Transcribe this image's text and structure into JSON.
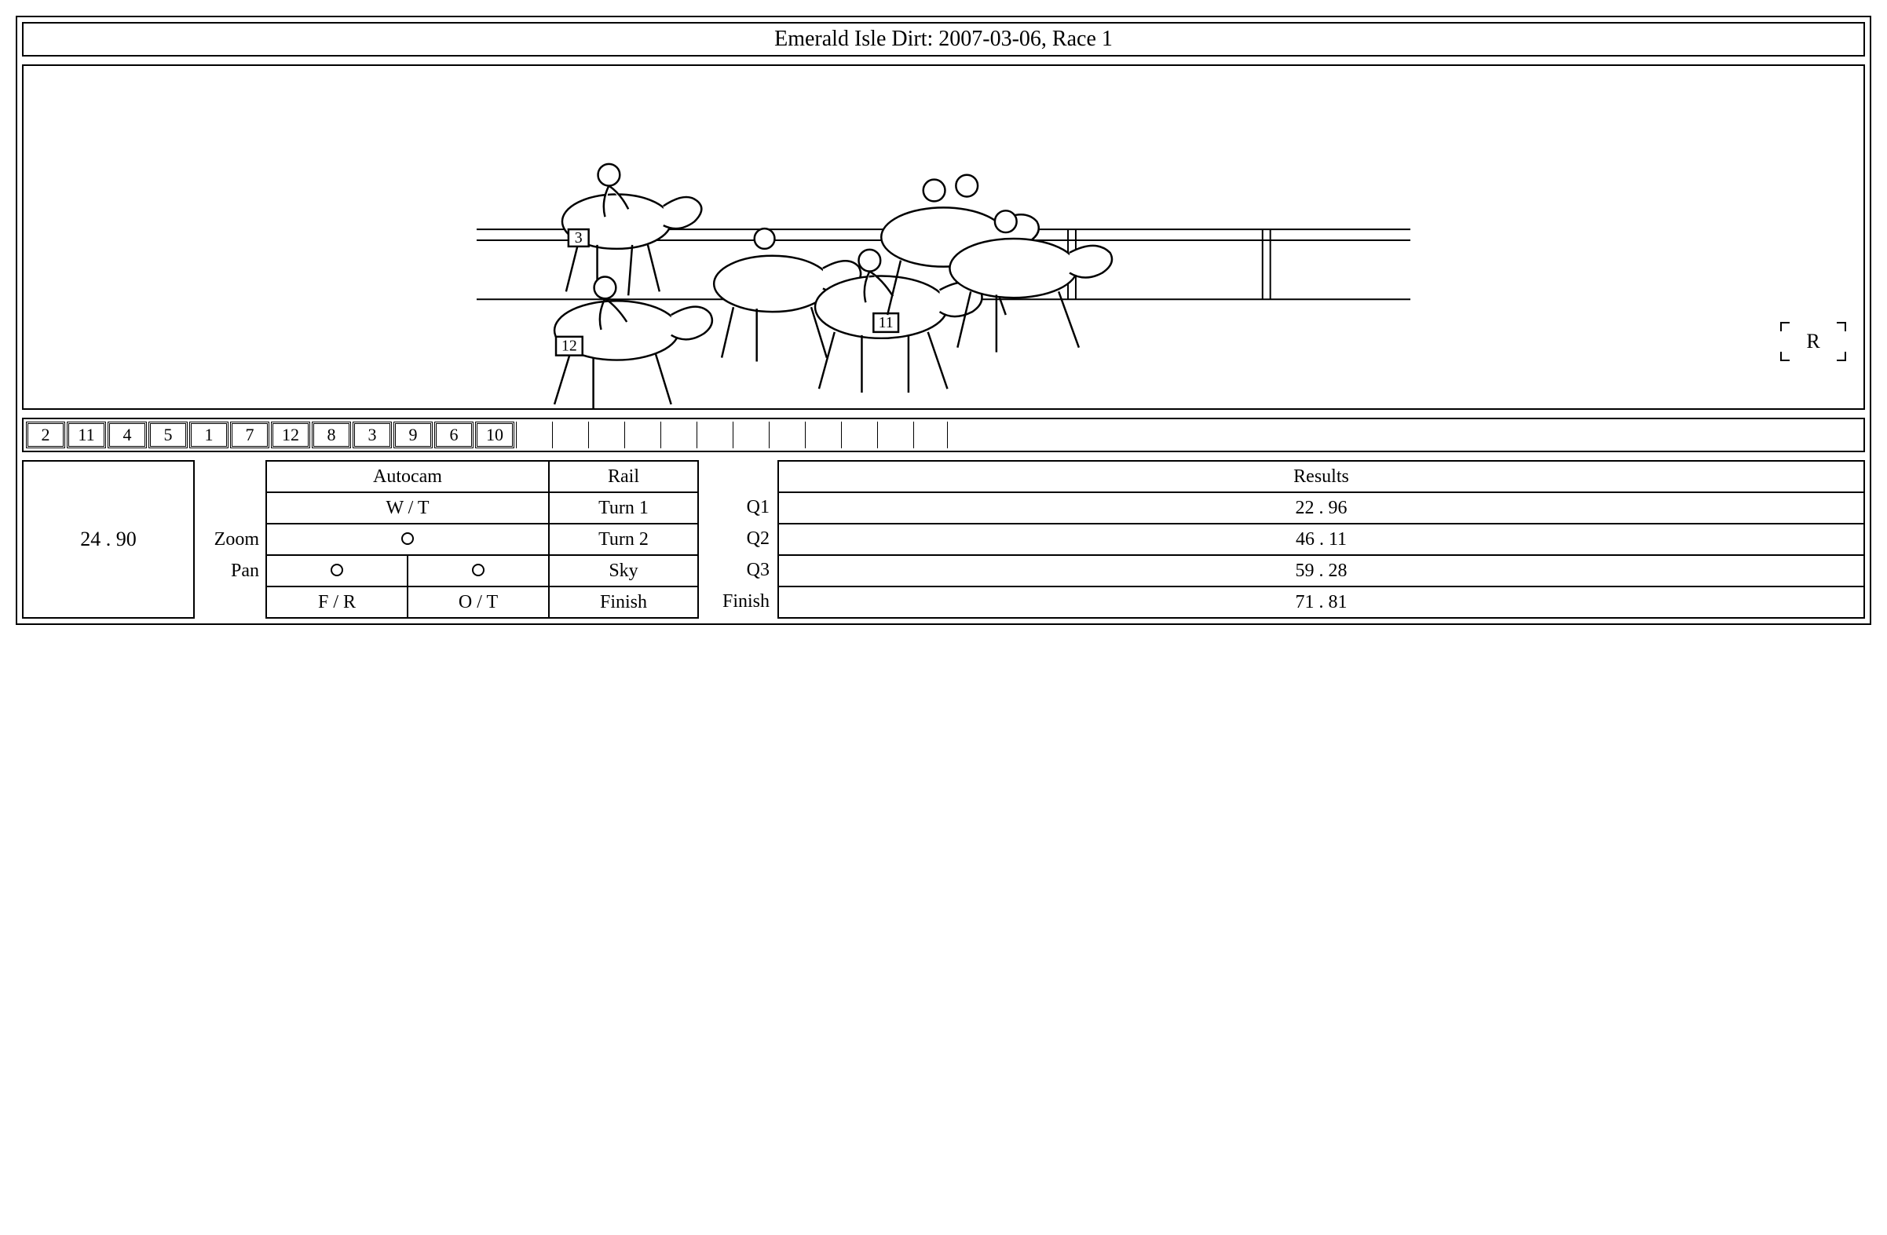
{
  "title": "Emerald Isle Dirt: 2007-03-06, Race 1",
  "record_indicator": "R",
  "horse_numbers_visible": [
    "3",
    "12",
    "11"
  ],
  "position_order": [
    "2",
    "11",
    "4",
    "5",
    "1",
    "7",
    "12",
    "8",
    "3",
    "9",
    "6",
    "10"
  ],
  "empty_position_slots": 12,
  "timer": "24 . 90",
  "labels": {
    "zoom": "Zoom",
    "pan": "Pan",
    "autocam": "Autocam",
    "wt": "W / T",
    "fr": "F / R",
    "ot": "O / T",
    "rail": "Rail",
    "turn1": "Turn 1",
    "turn2": "Turn 2",
    "sky": "Sky",
    "finish_cam": "Finish",
    "q1": "Q1",
    "q2": "Q2",
    "q3": "Q3",
    "finish": "Finish",
    "results": "Results"
  },
  "splits": {
    "q1": "22 . 96",
    "q2": "46 . 11",
    "q3": "59 . 28",
    "finish": "71 . 81"
  },
  "style": {
    "font_family": "Georgia, Times New Roman, serif",
    "border_color": "#000000",
    "background": "#ffffff",
    "title_fontsize": 28,
    "cell_fontsize": 24,
    "timer_fontsize": 26
  }
}
